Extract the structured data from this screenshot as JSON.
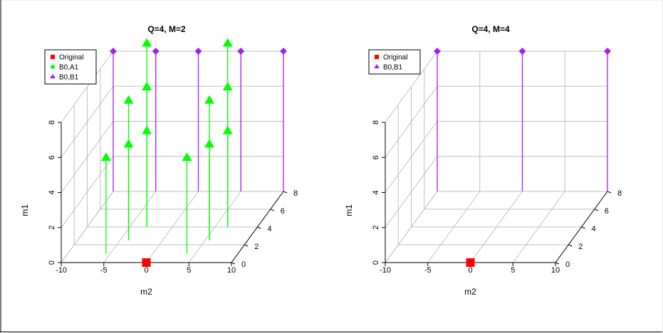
{
  "chart_data": [
    {
      "type": "scatter3d",
      "title": "Q=4, M=2",
      "xlabel": "m2",
      "ylabel": "m1",
      "zlabel": "",
      "xlim": [
        -10,
        10
      ],
      "ylim": [
        0,
        8
      ],
      "zlim": [
        0,
        8
      ],
      "x_ticks": [
        "-10",
        "-5",
        "0",
        "5",
        "10"
      ],
      "y_ticks": [
        "0",
        "2",
        "4",
        "6",
        "8"
      ],
      "z_ticks": [
        "0",
        "2",
        "4",
        "6",
        "8"
      ],
      "legend": {
        "position": "top-left",
        "entries": [
          "Original",
          "B0,A1",
          "B0,B1"
        ]
      },
      "series": [
        {
          "name": "Original",
          "color": "#ff0000",
          "marker": "square",
          "points": [
            {
              "x": 0,
              "y": 0,
              "z": 0
            }
          ]
        },
        {
          "name": "B0,A1",
          "color": "#00ff00",
          "marker": "triangle",
          "points": [
            {
              "x": -5.5,
              "y": 1,
              "z": 5.5
            },
            {
              "x": -4,
              "y": 2.5,
              "z": 5.5
            },
            {
              "x": -4,
              "y": 2.5,
              "z": 8
            },
            {
              "x": -3,
              "y": 4,
              "z": 5.5
            },
            {
              "x": -3,
              "y": 4,
              "z": 8
            },
            {
              "x": -3,
              "y": 4,
              "z": 10.5
            },
            {
              "x": 4,
              "y": 1,
              "z": 5.5
            },
            {
              "x": 5.5,
              "y": 2.5,
              "z": 5.5
            },
            {
              "x": 5.5,
              "y": 2.5,
              "z": 8
            },
            {
              "x": 6.5,
              "y": 4,
              "z": 5.5
            },
            {
              "x": 6.5,
              "y": 4,
              "z": 8
            },
            {
              "x": 6.5,
              "y": 4,
              "z": 10.5
            }
          ]
        },
        {
          "name": "B0,B1",
          "color": "#a020f0",
          "marker": "diamond",
          "points": [
            {
              "x": -10,
              "y": 8,
              "z": 8
            },
            {
              "x": -5,
              "y": 8,
              "z": 8
            },
            {
              "x": 0,
              "y": 8,
              "z": 8
            },
            {
              "x": 5,
              "y": 8,
              "z": 8
            },
            {
              "x": 10,
              "y": 8,
              "z": 8
            }
          ]
        }
      ]
    },
    {
      "type": "scatter3d",
      "title": "Q=4, M=4",
      "xlabel": "m2",
      "ylabel": "m1",
      "zlabel": "",
      "xlim": [
        -10,
        10
      ],
      "ylim": [
        0,
        8
      ],
      "zlim": [
        0,
        8
      ],
      "x_ticks": [
        "-10",
        "-5",
        "0",
        "5",
        "10"
      ],
      "y_ticks": [
        "0",
        "2",
        "4",
        "6",
        "8"
      ],
      "z_ticks": [
        "0",
        "2",
        "4",
        "6",
        "8"
      ],
      "legend": {
        "position": "top-left",
        "entries": [
          "Original",
          "B0,B1"
        ]
      },
      "series": [
        {
          "name": "Original",
          "color": "#ff0000",
          "marker": "square",
          "points": [
            {
              "x": 0,
              "y": 0,
              "z": 0
            }
          ]
        },
        {
          "name": "B0,B1",
          "color": "#a020f0",
          "marker": "diamond",
          "points": [
            {
              "x": -10,
              "y": 8,
              "z": 8
            },
            {
              "x": 0,
              "y": 8,
              "z": 8
            },
            {
              "x": 10,
              "y": 8,
              "z": 8
            }
          ]
        }
      ]
    }
  ]
}
